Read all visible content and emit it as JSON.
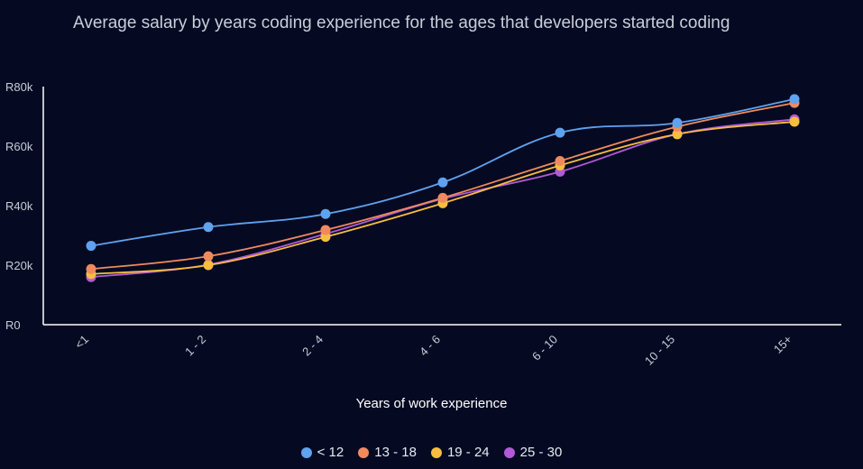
{
  "chart_data": {
    "type": "line",
    "title": "Average salary by years coding experience for the ages that developers started coding",
    "xlabel": "Years of work experience",
    "ylabel": "",
    "categories": [
      "<1",
      "1 - 2",
      "2 - 4",
      "4 - 6",
      "6 - 10",
      "10 - 15",
      "15+"
    ],
    "ylim": [
      0,
      80000
    ],
    "yticks": [
      "R0",
      "R20k",
      "R40k",
      "R60k",
      "R80k"
    ],
    "grid": false,
    "legend_position": "bottom",
    "series": [
      {
        "name": "< 12",
        "color": "#5fa2ef",
        "values": [
          26500,
          32800,
          37200,
          47800,
          64500,
          67800,
          75800
        ]
      },
      {
        "name": "13 - 18",
        "color": "#f08a5d",
        "values": [
          18700,
          23000,
          31800,
          42600,
          55000,
          66500,
          74500
        ]
      },
      {
        "name": "19 - 24",
        "color": "#f6bd40",
        "values": [
          17000,
          20000,
          29500,
          40800,
          53500,
          64000,
          68200
        ]
      },
      {
        "name": "25 - 30",
        "color": "#b35ad6",
        "values": [
          16000,
          20200,
          30500,
          42300,
          51400,
          64000,
          69000
        ]
      }
    ]
  }
}
